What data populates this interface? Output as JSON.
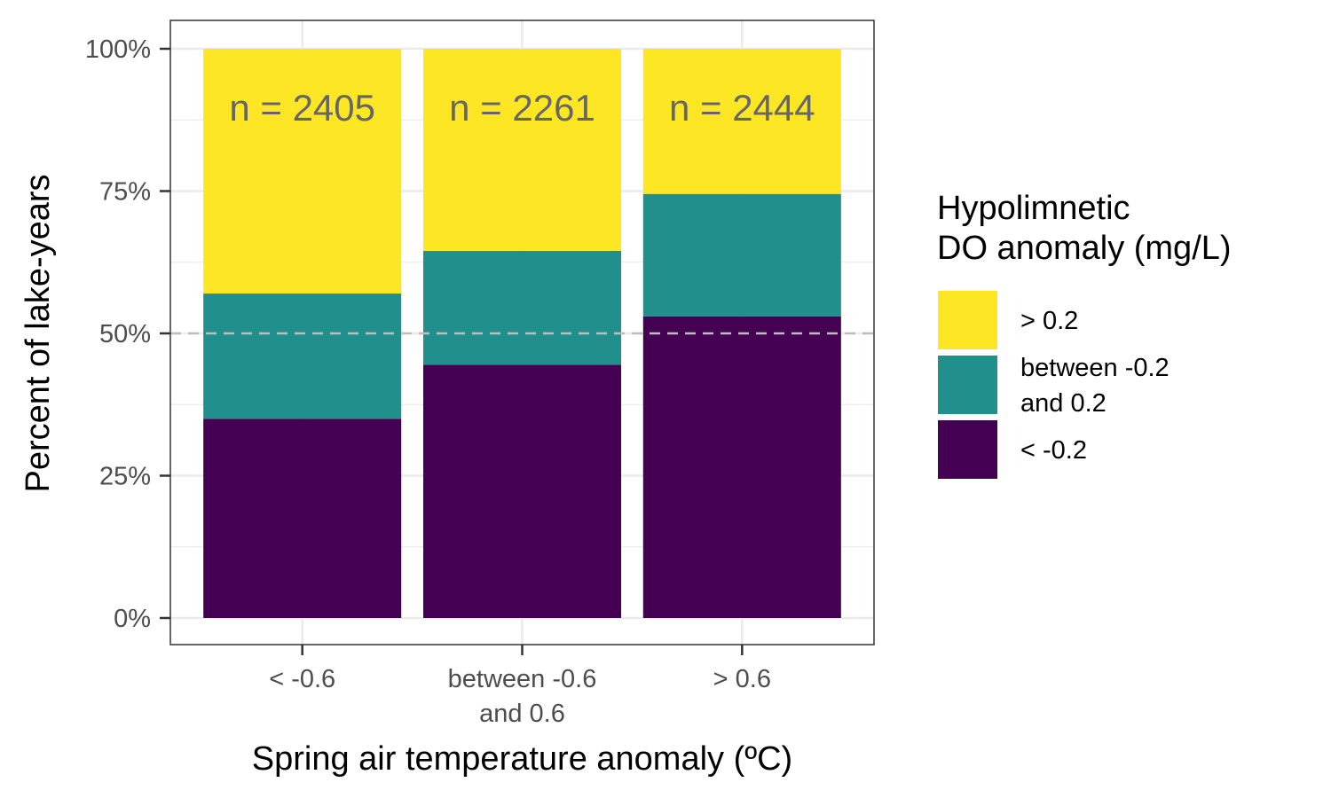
{
  "chart_data": {
    "type": "bar",
    "stacked": true,
    "categories": [
      "< -0.6",
      "between -0.6\nand 0.6",
      "> 0.6"
    ],
    "series": [
      {
        "name": "< -0.2",
        "color": "#440154",
        "values": [
          35.0,
          44.5,
          53.0
        ]
      },
      {
        "name": "between -0.2\nand 0.2",
        "color": "#21908C",
        "values": [
          22.0,
          20.0,
          21.5
        ]
      },
      {
        "name": "> 0.2",
        "color": "#FDE725",
        "values": [
          43.0,
          35.5,
          25.5
        ]
      }
    ],
    "annotations": [
      "n = 2405",
      "n = 2261",
      "n = 2444"
    ],
    "xlabel": "Spring air temperature anomaly (ºC)",
    "ylabel": "Percent of lake-years",
    "ylim": [
      0,
      100
    ],
    "yticks": [
      "0%",
      "25%",
      "50%",
      "75%",
      "100%"
    ],
    "reference_line": {
      "y": 50,
      "style": "dashed",
      "color": "#bebebe"
    },
    "legend": {
      "title": "Hypolimnetic\nDO anomaly (mg/L)",
      "placement": "right",
      "order": [
        "> 0.2",
        "between -0.2\nand 0.2",
        "< -0.2"
      ]
    },
    "grid": true
  }
}
